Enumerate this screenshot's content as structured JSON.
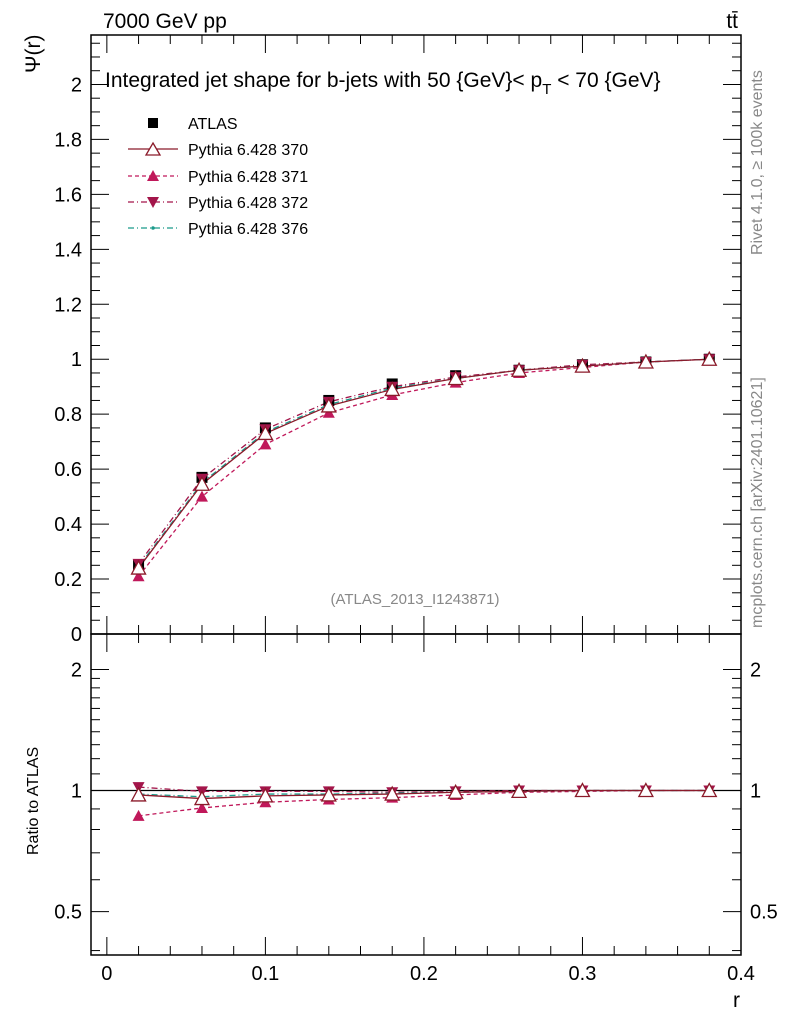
{
  "header": {
    "energy_label": "7000 GeV pp",
    "process_label": "tt̄",
    "right_label_top": "Rivet 4.1.0, ≥ 100k events",
    "right_label_bottom": "mcplots.cern.ch [arXiv:2401.10621]"
  },
  "chart_data": [
    {
      "type": "line",
      "panel": "main",
      "title": "Integrated jet shape for b-jets with 50 {GeV}< p_T < 70 {GeV}",
      "title_parts": {
        "a": "Integrated jet shape for b-jets with 50 {GeV}< p",
        "sub": "T",
        "b": " < 70 {GeV}"
      },
      "watermark": "(ATLAS_2013_I1243871)",
      "xlabel": "r",
      "ylabel": "Ψ(r)",
      "xlim": [
        -0.01,
        0.4
      ],
      "ylim": [
        0,
        2.18
      ],
      "yticks": [
        0,
        0.2,
        0.4,
        0.6,
        0.8,
        1,
        1.2,
        1.4,
        1.6,
        1.8,
        2
      ],
      "ytick_labels": [
        "0",
        "0.2",
        "0.4",
        "0.6",
        "0.8",
        "1",
        "1.2",
        "1.4",
        "1.6",
        "1.8",
        "2"
      ],
      "x": [
        0.02,
        0.06,
        0.1,
        0.14,
        0.18,
        0.22,
        0.26,
        0.3,
        0.34,
        0.38
      ],
      "series": [
        {
          "name": "ATLAS",
          "color": "#000000",
          "marker": "square",
          "line": "none",
          "values": [
            0.25,
            0.57,
            0.75,
            0.85,
            0.91,
            0.94,
            0.96,
            0.98,
            0.99,
            1.0
          ]
        },
        {
          "name": "Pythia 6.428 370",
          "color": "#8b1a2a",
          "marker": "open-triangle-up",
          "line": "solid",
          "values": [
            0.24,
            0.545,
            0.73,
            0.83,
            0.89,
            0.93,
            0.96,
            0.975,
            0.99,
            1.0
          ]
        },
        {
          "name": "Pythia 6.428 371",
          "color": "#c0185a",
          "marker": "triangle-up",
          "line": "dashed",
          "values": [
            0.21,
            0.5,
            0.69,
            0.805,
            0.87,
            0.915,
            0.95,
            0.97,
            0.99,
            1.0
          ]
        },
        {
          "name": "Pythia 6.428 372",
          "color": "#a3154a",
          "marker": "triangle-down",
          "line": "dashdot",
          "values": [
            0.255,
            0.565,
            0.745,
            0.845,
            0.9,
            0.935,
            0.96,
            0.98,
            0.99,
            1.0
          ]
        },
        {
          "name": "Pythia 6.428 376",
          "color": "#1a9a8a",
          "marker": "dot",
          "line": "dashdot",
          "values": [
            0.245,
            0.55,
            0.735,
            0.835,
            0.895,
            0.93,
            0.96,
            0.975,
            0.99,
            1.0
          ]
        }
      ]
    },
    {
      "type": "line",
      "panel": "ratio",
      "xlabel": "r",
      "ylabel": "Ratio to ATLAS",
      "xlim": [
        -0.01,
        0.4
      ],
      "ylim": [
        0.39,
        2.45
      ],
      "yscale": "log",
      "yticks": [
        0.5,
        1,
        2
      ],
      "ytick_labels": [
        "0.5",
        "1",
        "2"
      ],
      "xticks": [
        0,
        0.1,
        0.2,
        0.3,
        0.4
      ],
      "xtick_labels": [
        "0",
        "0.1",
        "0.2",
        "0.3",
        "0.4"
      ],
      "x": [
        0.02,
        0.06,
        0.1,
        0.14,
        0.18,
        0.22,
        0.26,
        0.3,
        0.34,
        0.38
      ],
      "series": [
        {
          "name": "Pythia 6.428 370",
          "values": [
            0.975,
            0.955,
            0.97,
            0.975,
            0.98,
            0.99,
            0.995,
            1.0,
            1.0,
            1.0
          ]
        },
        {
          "name": "Pythia 6.428 371",
          "values": [
            0.865,
            0.905,
            0.935,
            0.95,
            0.96,
            0.975,
            0.99,
            0.995,
            1.0,
            1.0
          ]
        },
        {
          "name": "Pythia 6.428 372",
          "values": [
            1.02,
            0.995,
            0.995,
            0.995,
            0.99,
            0.995,
            1.0,
            1.0,
            1.0,
            1.0
          ]
        },
        {
          "name": "Pythia 6.428 376",
          "values": [
            0.98,
            0.965,
            0.98,
            0.98,
            0.985,
            0.99,
            0.995,
            1.0,
            1.0,
            1.0
          ]
        }
      ]
    }
  ]
}
